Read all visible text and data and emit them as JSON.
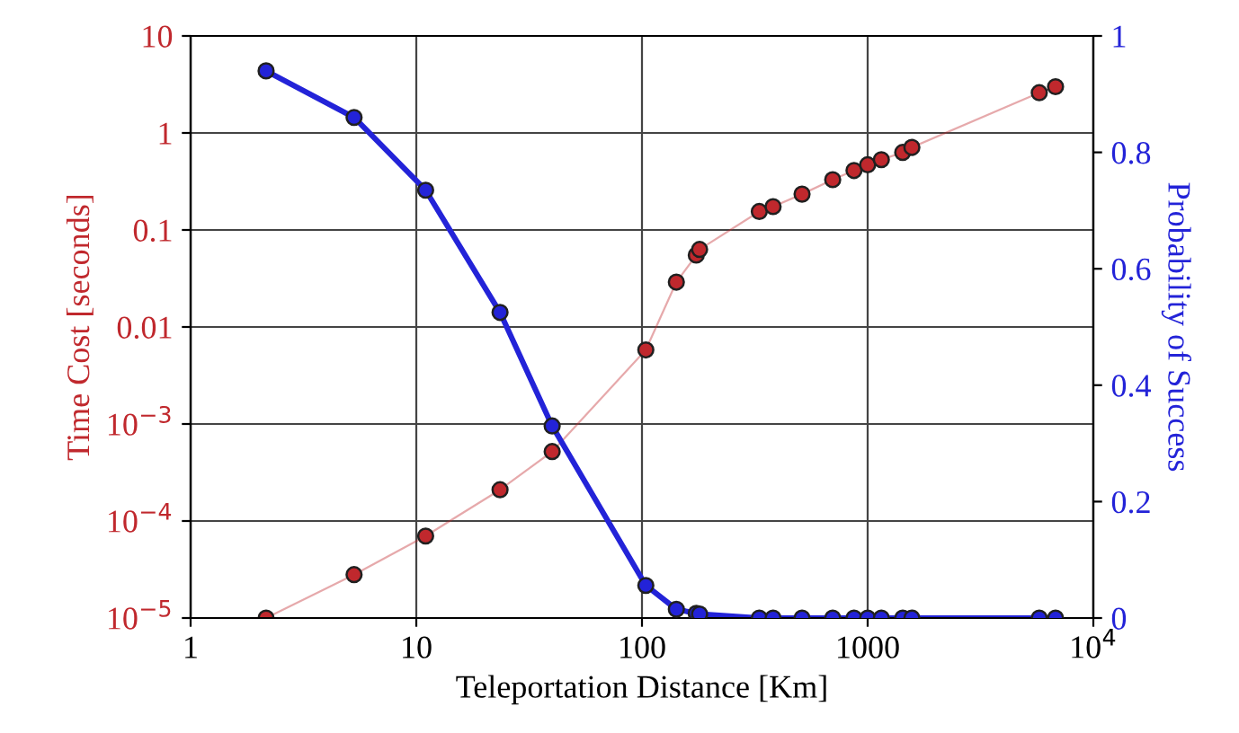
{
  "chart_data": {
    "type": "line",
    "xlabel": "Teleportation Distance [Km]",
    "ylabel": "Time Cost [seconds]",
    "y2label": "Probability of Success",
    "x": [
      2.16,
      5.3,
      11,
      23.5,
      40,
      104,
      142,
      174,
      180,
      331,
      381,
      512,
      700,
      870,
      1000,
      1150,
      1430,
      1570,
      5760,
      6800
    ],
    "series": [
      {
        "name": null,
        "color": "#c0282d",
        "axis": "y",
        "values": [
          1e-05,
          2.8e-05,
          7e-05,
          0.00021,
          0.00052,
          0.0058,
          0.029,
          0.055,
          0.063,
          0.155,
          0.174,
          0.234,
          0.33,
          0.41,
          0.47,
          0.53,
          0.63,
          0.71,
          2.6,
          3.0
        ]
      },
      {
        "name": null,
        "color": "#2323d8",
        "axis": "y2",
        "values": [
          0.94,
          0.86,
          0.735,
          0.525,
          0.33,
          0.056,
          0.015,
          0.008,
          0.007,
          0,
          0,
          0,
          0,
          0,
          0,
          0,
          0,
          0,
          0,
          0
        ]
      }
    ],
    "log": "xy",
    "marker": "circle",
    "line_style": "solid",
    "grid": true,
    "xlim": [
      1,
      10000
    ],
    "xticks": [
      1,
      10,
      100,
      1000,
      {
        "value": 10000,
        "label": "10$^{4}$"
      }
    ],
    "ylim": [
      1e-05,
      10
    ],
    "yticks": [
      {
        "value": 1e-05,
        "label": "10$^{−5}$"
      },
      {
        "value": 0.0001,
        "label": "10$^{−4}$"
      },
      {
        "value": 0.001,
        "label": "10$^{−3}$"
      },
      0.01,
      0.1,
      1,
      10
    ],
    "y2lim": [
      0,
      1
    ],
    "y2ticks": [
      0,
      0.2,
      0.4,
      0.6,
      0.8,
      1
    ]
  }
}
